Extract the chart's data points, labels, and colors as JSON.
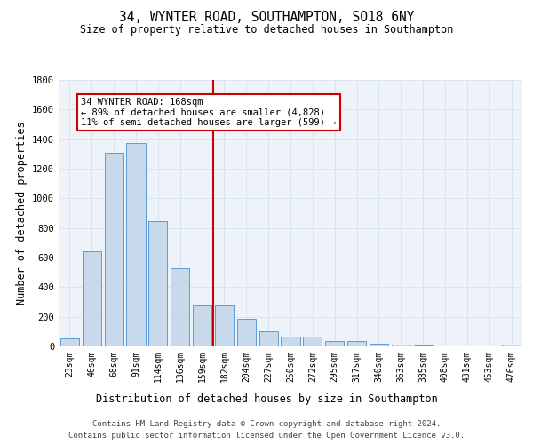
{
  "title_line1": "34, WYNTER ROAD, SOUTHAMPTON, SO18 6NY",
  "title_line2": "Size of property relative to detached houses in Southampton",
  "xlabel": "Distribution of detached houses by size in Southampton",
  "ylabel": "Number of detached properties",
  "bar_labels": [
    "23sqm",
    "46sqm",
    "68sqm",
    "91sqm",
    "114sqm",
    "136sqm",
    "159sqm",
    "182sqm",
    "204sqm",
    "227sqm",
    "250sqm",
    "272sqm",
    "295sqm",
    "317sqm",
    "340sqm",
    "363sqm",
    "385sqm",
    "408sqm",
    "431sqm",
    "453sqm",
    "476sqm"
  ],
  "bar_values": [
    55,
    645,
    1310,
    1375,
    845,
    530,
    275,
    275,
    185,
    105,
    65,
    65,
    35,
    35,
    20,
    15,
    5,
    0,
    0,
    0,
    15
  ],
  "bar_color": "#c9d9ec",
  "bar_edge_color": "#5b9bd5",
  "grid_color": "#d8e4f0",
  "bg_color": "#eef3f9",
  "vline_x": 6.5,
  "vline_color": "#cc0000",
  "annotation_text": "34 WYNTER ROAD: 168sqm\n← 89% of detached houses are smaller (4,828)\n11% of semi-detached houses are larger (599) →",
  "annotation_box_color": "#ffffff",
  "annotation_box_edge_color": "#cc0000",
  "ylim": [
    0,
    1800
  ],
  "yticks": [
    0,
    200,
    400,
    600,
    800,
    1000,
    1200,
    1400,
    1600,
    1800
  ],
  "footnote1": "Contains HM Land Registry data © Crown copyright and database right 2024.",
  "footnote2": "Contains public sector information licensed under the Open Government Licence v3.0."
}
